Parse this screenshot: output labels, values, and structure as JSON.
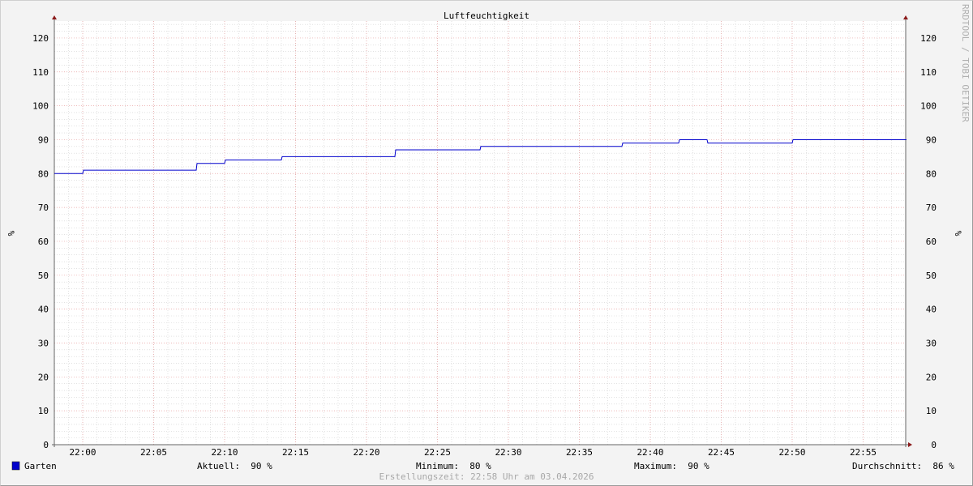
{
  "chart_data": {
    "type": "line",
    "title": "Luftfeuchtigkeit",
    "ylabel": "%",
    "watermark": "RRDTOOL / TOBI OETIKER",
    "xlim": [
      "21:58",
      "22:58"
    ],
    "ylim": [
      0,
      125
    ],
    "y_ticks": [
      0,
      10,
      20,
      30,
      40,
      50,
      60,
      70,
      80,
      90,
      100,
      110,
      120
    ],
    "x_ticks": [
      "22:00",
      "22:05",
      "22:10",
      "22:15",
      "22:20",
      "22:25",
      "22:30",
      "22:35",
      "22:40",
      "22:45",
      "22:50",
      "22:55"
    ],
    "grid": true,
    "step": true,
    "series": [
      {
        "name": "Garten",
        "color": "#0000cc",
        "points": [
          [
            "21:58",
            80
          ],
          [
            "22:00",
            81
          ],
          [
            "22:08",
            83
          ],
          [
            "22:10",
            84
          ],
          [
            "22:14",
            85
          ],
          [
            "22:22",
            87
          ],
          [
            "22:28",
            88
          ],
          [
            "22:38",
            89
          ],
          [
            "22:42",
            90
          ],
          [
            "22:44",
            89
          ],
          [
            "22:50",
            90
          ],
          [
            "22:58",
            90
          ]
        ]
      }
    ],
    "legend": {
      "name": "Garten",
      "current": "Aktuell:  90 %",
      "minimum": "Minimum:  80 %",
      "maximum": "Maximum:  90 %",
      "average": "Durchschnitt:  86 %"
    },
    "footer": "Erstellungszeit: 22:58 Uhr am 03.04.2026"
  }
}
